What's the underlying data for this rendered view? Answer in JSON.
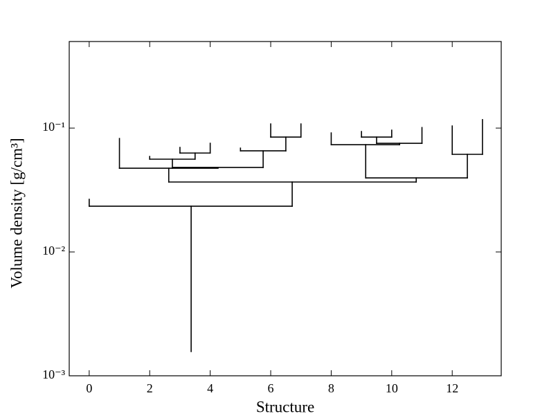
{
  "chart_data": {
    "type": "dendrogram",
    "xlabel": "Structure",
    "ylabel": "Volume density [g/cm³]",
    "color": "#000000",
    "yscale": "log",
    "xlim": [
      -0.66,
      13.62
    ],
    "ylim": [
      0.001,
      0.5
    ],
    "xticks": [
      0,
      2,
      4,
      6,
      8,
      10,
      12
    ],
    "yticks": [
      {
        "value": 0.001,
        "label": "10⁻³"
      },
      {
        "value": 0.01,
        "label": "10⁻²"
      },
      {
        "value": 0.1,
        "label": "10⁻¹"
      }
    ],
    "segments": [
      {
        "x": [
          3.37,
          3.37
        ],
        "y": [
          0.00157,
          0.0234
        ]
      },
      {
        "x": [
          0,
          6.71
        ],
        "y": [
          0.0234,
          0.0234
        ]
      },
      {
        "x": [
          0,
          0
        ],
        "y": [
          0.0234,
          0.0266
        ]
      },
      {
        "x": [
          6.71,
          6.71
        ],
        "y": [
          0.0234,
          0.0367
        ]
      },
      {
        "x": [
          2.63,
          10.81
        ],
        "y": [
          0.0367,
          0.0367
        ]
      },
      {
        "x": [
          2.63,
          2.63
        ],
        "y": [
          0.0367,
          0.0474
        ]
      },
      {
        "x": [
          1,
          4.26
        ],
        "y": [
          0.0474,
          0.0474
        ]
      },
      {
        "x": [
          1,
          1
        ],
        "y": [
          0.0474,
          0.0824
        ]
      },
      {
        "x": [
          2.75,
          2.75
        ],
        "y": [
          0.0474,
          0.0561
        ]
      },
      {
        "x": [
          2,
          3.5
        ],
        "y": [
          0.0561,
          0.0561
        ]
      },
      {
        "x": [
          2,
          2
        ],
        "y": [
          0.0561,
          0.059
        ]
      },
      {
        "x": [
          3.5,
          3.5
        ],
        "y": [
          0.0561,
          0.0629
        ]
      },
      {
        "x": [
          3,
          4
        ],
        "y": [
          0.0629,
          0.0629
        ]
      },
      {
        "x": [
          3,
          3
        ],
        "y": [
          0.0629,
          0.0698
        ]
      },
      {
        "x": [
          4,
          4
        ],
        "y": [
          0.0629,
          0.0754
        ]
      },
      {
        "x": [
          2.75,
          5.75
        ],
        "y": [
          0.0481,
          0.0481
        ]
      },
      {
        "x": [
          5.75,
          5.75
        ],
        "y": [
          0.0481,
          0.0655
        ]
      },
      {
        "x": [
          5,
          6.5
        ],
        "y": [
          0.0655,
          0.0655
        ]
      },
      {
        "x": [
          5,
          5
        ],
        "y": [
          0.0655,
          0.0689
        ]
      },
      {
        "x": [
          6.5,
          6.5
        ],
        "y": [
          0.0655,
          0.0846
        ]
      },
      {
        "x": [
          6,
          7
        ],
        "y": [
          0.0846,
          0.0846
        ]
      },
      {
        "x": [
          6,
          6
        ],
        "y": [
          0.0846,
          0.108
        ]
      },
      {
        "x": [
          7,
          7
        ],
        "y": [
          0.0846,
          0.108
        ]
      },
      {
        "x": [
          10.81,
          10.81
        ],
        "y": [
          0.0367,
          0.0396
        ]
      },
      {
        "x": [
          9.14,
          12.5
        ],
        "y": [
          0.0396,
          0.0396
        ]
      },
      {
        "x": [
          9.14,
          9.14
        ],
        "y": [
          0.0396,
          0.0735
        ]
      },
      {
        "x": [
          8,
          10.26
        ],
        "y": [
          0.0735,
          0.0735
        ]
      },
      {
        "x": [
          8,
          8
        ],
        "y": [
          0.0735,
          0.0914
        ]
      },
      {
        "x": [
          10.26,
          10.26
        ],
        "y": [
          0.0735,
          0.0754
        ]
      },
      {
        "x": [
          9.5,
          11
        ],
        "y": [
          0.0754,
          0.0754
        ]
      },
      {
        "x": [
          9.5,
          9.5
        ],
        "y": [
          0.0754,
          0.0846
        ]
      },
      {
        "x": [
          9,
          10
        ],
        "y": [
          0.0846,
          0.0846
        ]
      },
      {
        "x": [
          9,
          9
        ],
        "y": [
          0.0846,
          0.0938
        ]
      },
      {
        "x": [
          10,
          10
        ],
        "y": [
          0.0846,
          0.0962
        ]
      },
      {
        "x": [
          11,
          11
        ],
        "y": [
          0.0754,
          0.101
        ]
      },
      {
        "x": [
          12.5,
          12.5
        ],
        "y": [
          0.0396,
          0.0614
        ]
      },
      {
        "x": [
          12,
          13
        ],
        "y": [
          0.0614,
          0.0614
        ]
      },
      {
        "x": [
          12,
          12
        ],
        "y": [
          0.0614,
          0.104
        ]
      },
      {
        "x": [
          13,
          13
        ],
        "y": [
          0.0614,
          0.117
        ]
      }
    ]
  }
}
